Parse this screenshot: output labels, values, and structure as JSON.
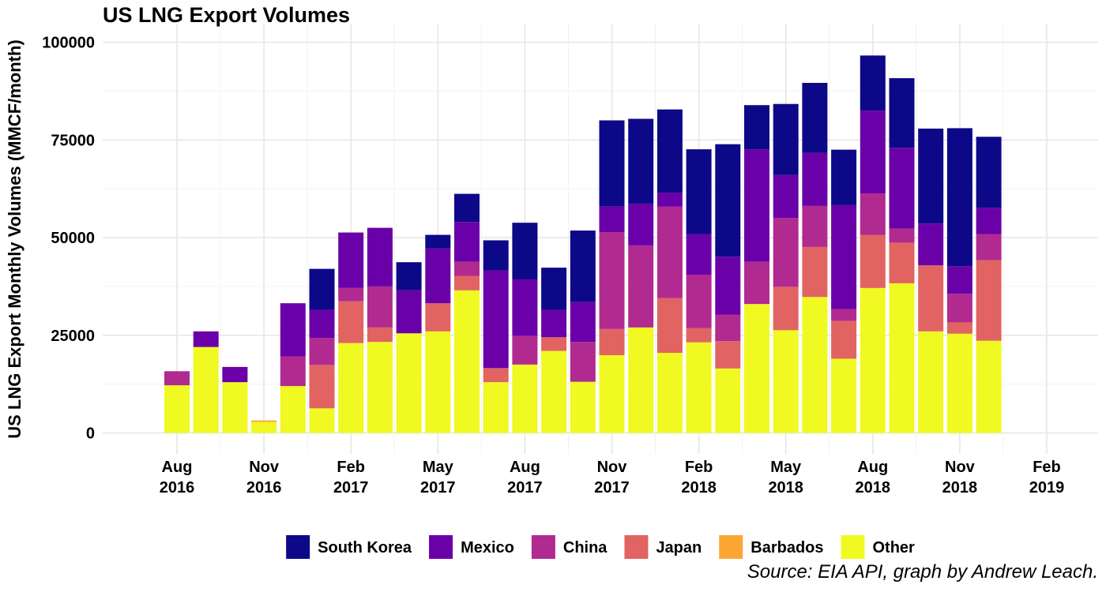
{
  "chart_data": {
    "type": "bar",
    "stacked": true,
    "title": "US LNG Export Volumes",
    "ylabel": "US LNG Export Monthly Volumes (MMCF/month)",
    "xlabel": "",
    "caption": "Source: EIA API, graph by Andrew Leach.",
    "ylim": [
      0,
      100000
    ],
    "yticks": [
      "0",
      "25000",
      "50000",
      "75000",
      "100000"
    ],
    "ytick_values": [
      0,
      25000,
      50000,
      75000,
      100000
    ],
    "xrange": [
      "2016-06",
      "2019-03"
    ],
    "xticks": [
      {
        "date": "2016-08",
        "line1": "Aug",
        "line2": "2016"
      },
      {
        "date": "2016-11",
        "line1": "Nov",
        "line2": "2016"
      },
      {
        "date": "2017-02",
        "line1": "Feb",
        "line2": "2017"
      },
      {
        "date": "2017-05",
        "line1": "May",
        "line2": "2017"
      },
      {
        "date": "2017-08",
        "line1": "Aug",
        "line2": "2017"
      },
      {
        "date": "2017-11",
        "line1": "Nov",
        "line2": "2017"
      },
      {
        "date": "2018-02",
        "line1": "Feb",
        "line2": "2018"
      },
      {
        "date": "2018-05",
        "line1": "May",
        "line2": "2018"
      },
      {
        "date": "2018-08",
        "line1": "Aug",
        "line2": "2018"
      },
      {
        "date": "2018-11",
        "line1": "Nov",
        "line2": "2018"
      },
      {
        "date": "2019-02",
        "line1": "Feb",
        "line2": "2019"
      }
    ],
    "months": [
      "2016-08",
      "2016-09",
      "2016-10",
      "2016-11",
      "2016-12",
      "2017-01",
      "2017-02",
      "2017-03",
      "2017-04",
      "2017-05",
      "2017-06",
      "2017-07",
      "2017-08",
      "2017-09",
      "2017-10",
      "2017-11",
      "2017-12",
      "2018-01",
      "2018-02",
      "2018-03",
      "2018-04",
      "2018-05",
      "2018-06",
      "2018-07",
      "2018-08",
      "2018-09",
      "2018-10",
      "2018-11",
      "2018-12"
    ],
    "legend_position": "bottom",
    "grid": true,
    "series": [
      {
        "name": "Other",
        "color": "#f0f921",
        "values": [
          12200,
          22000,
          13000,
          2800,
          12000,
          6300,
          23000,
          23300,
          25500,
          26000,
          36500,
          13000,
          17500,
          21000,
          13100,
          19900,
          27000,
          20500,
          23200,
          16500,
          33000,
          26300,
          34800,
          19000,
          37100,
          38300,
          26000,
          25400,
          23600
        ]
      },
      {
        "name": "Barbados",
        "color": "#fca636",
        "values": [
          0,
          0,
          0,
          400,
          0,
          0,
          0,
          0,
          0,
          0,
          0,
          0,
          0,
          0,
          0,
          0,
          0,
          0,
          0,
          0,
          0,
          0,
          0,
          0,
          0,
          0,
          0,
          0,
          0
        ]
      },
      {
        "name": "Japan",
        "color": "#e16462",
        "values": [
          0,
          0,
          0,
          0,
          0,
          11100,
          10700,
          3700,
          0,
          7200,
          3700,
          3600,
          0,
          3500,
          0,
          6700,
          0,
          14000,
          3600,
          7000,
          0,
          11100,
          12800,
          9700,
          13600,
          10400,
          16900,
          2900,
          20600
        ]
      },
      {
        "name": "China",
        "color": "#b12a90",
        "values": [
          3600,
          0,
          0,
          0,
          7600,
          6900,
          3400,
          10500,
          0,
          0,
          3600,
          0,
          7300,
          0,
          10200,
          24800,
          21000,
          23400,
          13700,
          6800,
          10800,
          17600,
          10500,
          3000,
          10600,
          3600,
          0,
          7300,
          6700
        ]
      },
      {
        "name": "Mexico",
        "color": "#6a00a8",
        "values": [
          0,
          4000,
          3900,
          0,
          13600,
          7200,
          14200,
          15000,
          11000,
          14000,
          10200,
          25000,
          14500,
          7000,
          10200,
          6600,
          10700,
          3600,
          10400,
          14800,
          28800,
          11000,
          13600,
          26600,
          21200,
          20700,
          10700,
          7100,
          6700
        ]
      },
      {
        "name": "South Korea",
        "color": "#0d0887",
        "values": [
          0,
          0,
          0,
          0,
          0,
          10500,
          0,
          0,
          7200,
          3500,
          7200,
          7700,
          14500,
          10800,
          18300,
          22000,
          21700,
          21300,
          21700,
          28800,
          11300,
          18200,
          17900,
          14200,
          14100,
          17800,
          24300,
          35300,
          18200
        ]
      }
    ],
    "legend": [
      {
        "name": "South Korea",
        "color": "#0d0887"
      },
      {
        "name": "Mexico",
        "color": "#6a00a8"
      },
      {
        "name": "China",
        "color": "#b12a90"
      },
      {
        "name": "Japan",
        "color": "#e16462"
      },
      {
        "name": "Barbados",
        "color": "#fca636"
      },
      {
        "name": "Other",
        "color": "#f0f921"
      }
    ]
  }
}
